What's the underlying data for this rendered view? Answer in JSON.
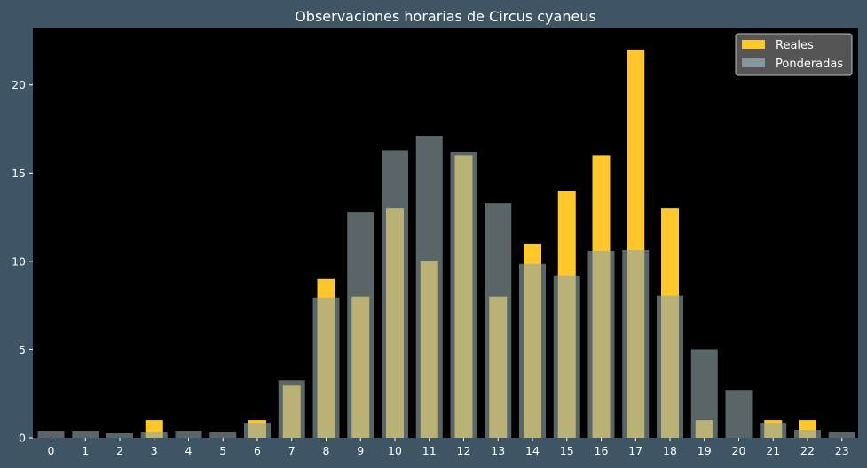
{
  "chart_data": {
    "type": "bar",
    "title": "Observaciones horarias de Circus cyaneus",
    "xlabel": "",
    "ylabel": "",
    "categories": [
      "0",
      "1",
      "2",
      "3",
      "4",
      "5",
      "6",
      "7",
      "8",
      "9",
      "10",
      "11",
      "12",
      "13",
      "14",
      "15",
      "16",
      "17",
      "18",
      "19",
      "20",
      "21",
      "22",
      "23"
    ],
    "ylim": [
      0,
      23.2
    ],
    "yticks": [
      0,
      5,
      10,
      15,
      20
    ],
    "grid": false,
    "legend_position": "top-right",
    "series": [
      {
        "name": "Reales",
        "color": "#ffc72c",
        "values": [
          0,
          0,
          0,
          1,
          0,
          0,
          1,
          3,
          9,
          8,
          13,
          10,
          16,
          8,
          11,
          14,
          16,
          22,
          13,
          1,
          0,
          1,
          1,
          0
        ]
      },
      {
        "name": "Ponderadas",
        "color": "#8fa3a6",
        "values": [
          0.4,
          0.4,
          0.3,
          0.35,
          0.4,
          0.35,
          0.85,
          3.25,
          7.95,
          12.8,
          16.3,
          17.1,
          16.2,
          13.3,
          9.85,
          9.2,
          10.6,
          10.65,
          8.05,
          5.0,
          2.7,
          0.85,
          0.45,
          0.35
        ]
      }
    ]
  }
}
